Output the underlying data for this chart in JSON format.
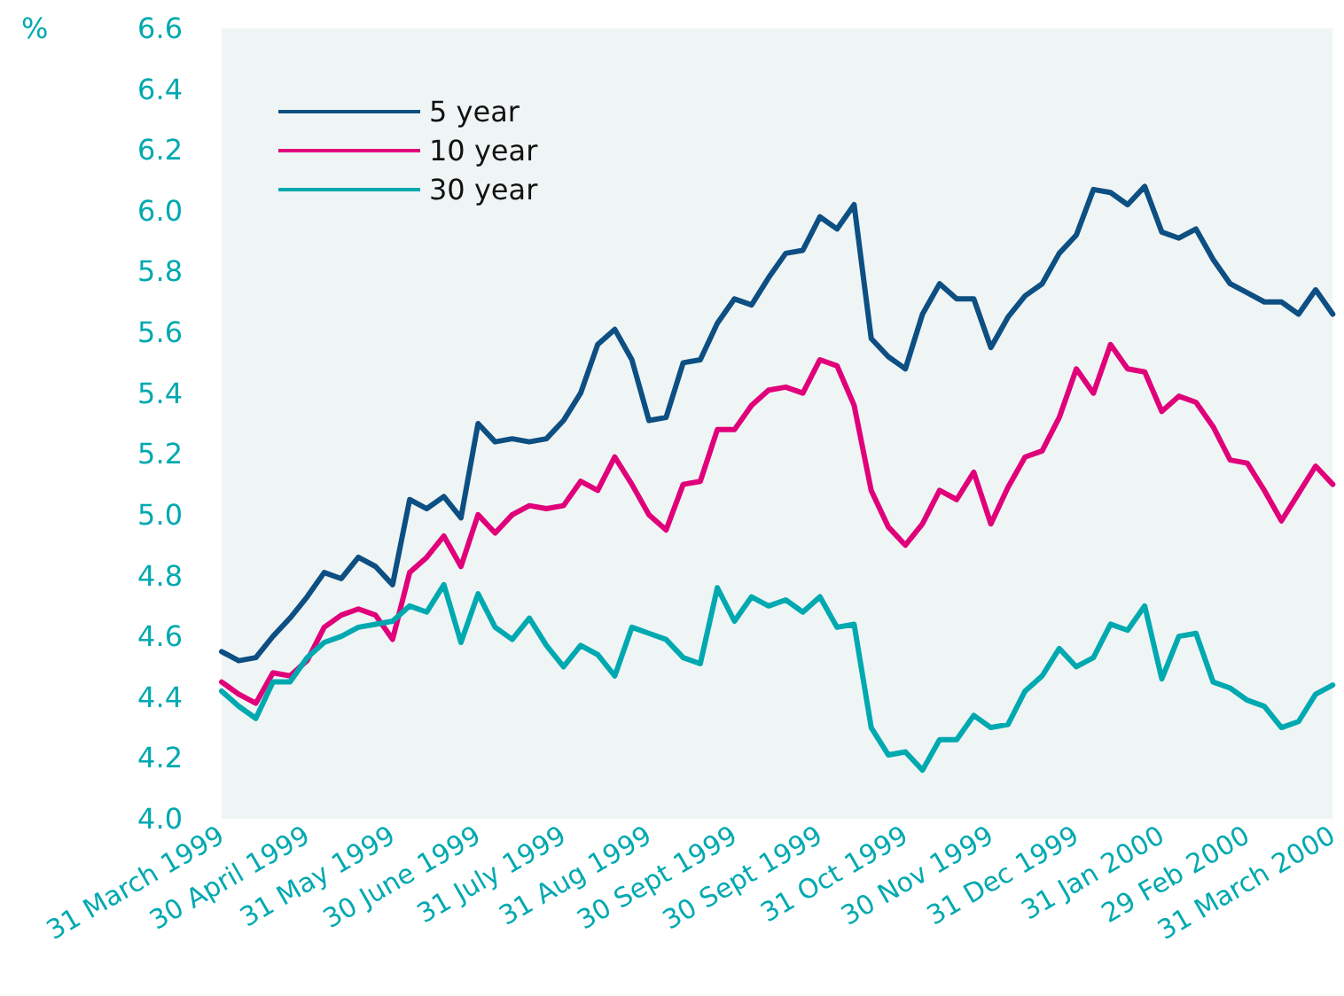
{
  "chart_data": {
    "type": "line",
    "ylabel": "%",
    "categories": [
      "31 March 1999",
      null,
      null,
      null,
      null,
      "30 April 1999",
      null,
      null,
      null,
      null,
      "31 May 1999",
      null,
      null,
      null,
      null,
      "30 June 1999",
      null,
      null,
      null,
      null,
      "31 July 1999",
      null,
      null,
      null,
      null,
      "31 Aug 1999",
      null,
      null,
      null,
      null,
      "30 Sept 1999",
      null,
      null,
      null,
      null,
      "30 Sept 1999",
      null,
      null,
      null,
      null,
      "31 Oct 1999",
      null,
      null,
      null,
      null,
      "30 Nov 1999",
      null,
      null,
      null,
      null,
      "31 Dec 1999",
      null,
      null,
      null,
      null,
      "31 Jan 2000",
      null,
      null,
      null,
      null,
      "29 Feb 2000",
      null,
      null,
      null,
      null,
      "31 March 2000"
    ],
    "ylim": [
      4.0,
      6.6
    ],
    "yticks": [
      {
        "value": 4.0,
        "label": "4.0"
      },
      {
        "value": 4.2,
        "label": "4.2"
      },
      {
        "value": 4.4,
        "label": "4.4"
      },
      {
        "value": 4.6,
        "label": "4.6"
      },
      {
        "value": 4.8,
        "label": "4.8"
      },
      {
        "value": 5.0,
        "label": "5.0"
      },
      {
        "value": 5.2,
        "label": "5.2"
      },
      {
        "value": 5.4,
        "label": "5.4"
      },
      {
        "value": 5.6,
        "label": "5.6"
      },
      {
        "value": 5.8,
        "label": "5.8"
      },
      {
        "value": 6.0,
        "label": "6.0"
      },
      {
        "value": 6.2,
        "label": "6.2"
      },
      {
        "value": 6.4,
        "label": "6.4"
      },
      {
        "value": 6.6,
        "label": "6.6"
      }
    ],
    "legend": "top left",
    "marker": "none",
    "line_style": "solid",
    "series": [
      {
        "name": "5 year",
        "color": "#0d4f82",
        "values": [
          4.55,
          4.52,
          4.53,
          4.6,
          4.66,
          4.73,
          4.81,
          4.79,
          4.86,
          4.83,
          4.77,
          5.05,
          5.02,
          5.06,
          4.99,
          5.3,
          5.24,
          5.25,
          5.24,
          5.25,
          5.31,
          5.4,
          5.56,
          5.61,
          5.51,
          5.31,
          5.32,
          5.5,
          5.51,
          5.63,
          5.71,
          5.69,
          5.78,
          5.86,
          5.87,
          5.98,
          5.94,
          6.02,
          5.58,
          5.52,
          5.48,
          5.66,
          5.76,
          5.71,
          5.71,
          5.55,
          5.65,
          5.72,
          5.76,
          5.86,
          5.92,
          6.07,
          6.06,
          6.02,
          6.08,
          5.93,
          5.91,
          5.94,
          5.84,
          5.76,
          5.73,
          5.7,
          5.7,
          5.66,
          5.74,
          5.66
        ]
      },
      {
        "name": "10 year",
        "color": "#e0007a",
        "values": [
          4.45,
          4.41,
          4.38,
          4.48,
          4.47,
          4.52,
          4.63,
          4.67,
          4.69,
          4.67,
          4.59,
          4.81,
          4.86,
          4.93,
          4.83,
          5.0,
          4.94,
          5.0,
          5.03,
          5.02,
          5.03,
          5.11,
          5.08,
          5.19,
          5.1,
          5.0,
          4.95,
          5.1,
          5.11,
          5.28,
          5.28,
          5.36,
          5.41,
          5.42,
          5.4,
          5.51,
          5.49,
          5.36,
          5.08,
          4.96,
          4.9,
          4.97,
          5.08,
          5.05,
          5.14,
          4.97,
          5.09,
          5.19,
          5.21,
          5.32,
          5.48,
          5.4,
          5.56,
          5.48,
          5.47,
          5.34,
          5.39,
          5.37,
          5.29,
          5.18,
          5.17,
          5.08,
          4.98,
          5.07,
          5.16,
          5.1
        ]
      },
      {
        "name": "30 year",
        "color": "#00a9b0",
        "values": [
          4.42,
          4.37,
          4.33,
          4.45,
          4.45,
          4.53,
          4.58,
          4.6,
          4.63,
          4.64,
          4.65,
          4.7,
          4.68,
          4.77,
          4.58,
          4.74,
          4.63,
          4.59,
          4.66,
          4.57,
          4.5,
          4.57,
          4.54,
          4.47,
          4.63,
          4.61,
          4.59,
          4.53,
          4.51,
          4.76,
          4.65,
          4.73,
          4.7,
          4.72,
          4.68,
          4.73,
          4.63,
          4.64,
          4.3,
          4.21,
          4.22,
          4.16,
          4.26,
          4.26,
          4.34,
          4.3,
          4.31,
          4.42,
          4.47,
          4.56,
          4.5,
          4.53,
          4.64,
          4.62,
          4.7,
          4.46,
          4.6,
          4.61,
          4.45,
          4.43,
          4.39,
          4.37,
          4.3,
          4.32,
          4.41,
          4.44
        ]
      }
    ]
  }
}
